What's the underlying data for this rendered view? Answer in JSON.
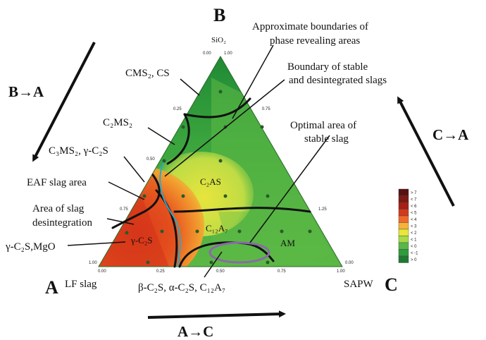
{
  "vertices": {
    "top": {
      "letter": "B",
      "formula": "SiO₂"
    },
    "left": {
      "letter": "A",
      "name": "LF slag"
    },
    "right": {
      "letter": "C",
      "name": "SAPW"
    }
  },
  "direction_arrows": {
    "b_to_a": "B→A",
    "c_to_a": "C→A",
    "a_to_c": "A→C"
  },
  "annotations": {
    "approx_boundaries_line1": "Approximate boundaries of",
    "approx_boundaries_line2": "phase revealing areas",
    "boundary_stable_line1": "Boundary of stable",
    "boundary_stable_line2": "and desintegrated slags",
    "optimal_line1": "Optimal area of",
    "optimal_line2": "stable slag",
    "cms2_cs": "CMS₂, CS",
    "c2ms2": "C₂MS₂",
    "c3ms2": "C₃MS₂, γ-C₂S",
    "eaf": "EAF slag area",
    "disint_line1": "Area of slag",
    "disint_line2": "desintegration",
    "gc2s_mgo": "γ-C₂S,MgO",
    "beta_bottom": "β-C₂S, α-C₂S, C₁₂A₇"
  },
  "phase_labels": {
    "c2as": "C₂AS",
    "c12a7": "C₁₂A₇",
    "am": "AM",
    "gc2s": "γ-C₂S"
  },
  "ticks": {
    "top_left": "0.00",
    "top_right": "1.00",
    "b_left_025": "0.25",
    "b_right_075": "0.75",
    "b_left_050": "0.50",
    "b_left_075": "0.75",
    "b_right_125": "1.25",
    "bottom_100": "1.00",
    "bottom_000": "0.00",
    "bottom_025": "0.25",
    "bottom_050": "0.50",
    "bottom_075": "0.75",
    "bottom_right_100": "1.00",
    "bottom_right_000": "0.00"
  },
  "legend": {
    "entries": [
      {
        "label": "> 7",
        "color": "#5a0f0f"
      },
      {
        "label": "< 7",
        "color": "#7a1a14"
      },
      {
        "label": "< 6",
        "color": "#a52016"
      },
      {
        "label": "< 5",
        "color": "#d23a1c"
      },
      {
        "label": "< 4",
        "color": "#ef6a2a"
      },
      {
        "label": "< 3",
        "color": "#f7b23a"
      },
      {
        "label": "< 2",
        "color": "#e6e83a"
      },
      {
        "label": "< 1",
        "color": "#a8d94a"
      },
      {
        "label": "< 0",
        "color": "#58b84a"
      },
      {
        "label": "< -1",
        "color": "#2f9a3e"
      },
      {
        "label": "> 0",
        "color": "#1e7a32"
      }
    ]
  }
}
